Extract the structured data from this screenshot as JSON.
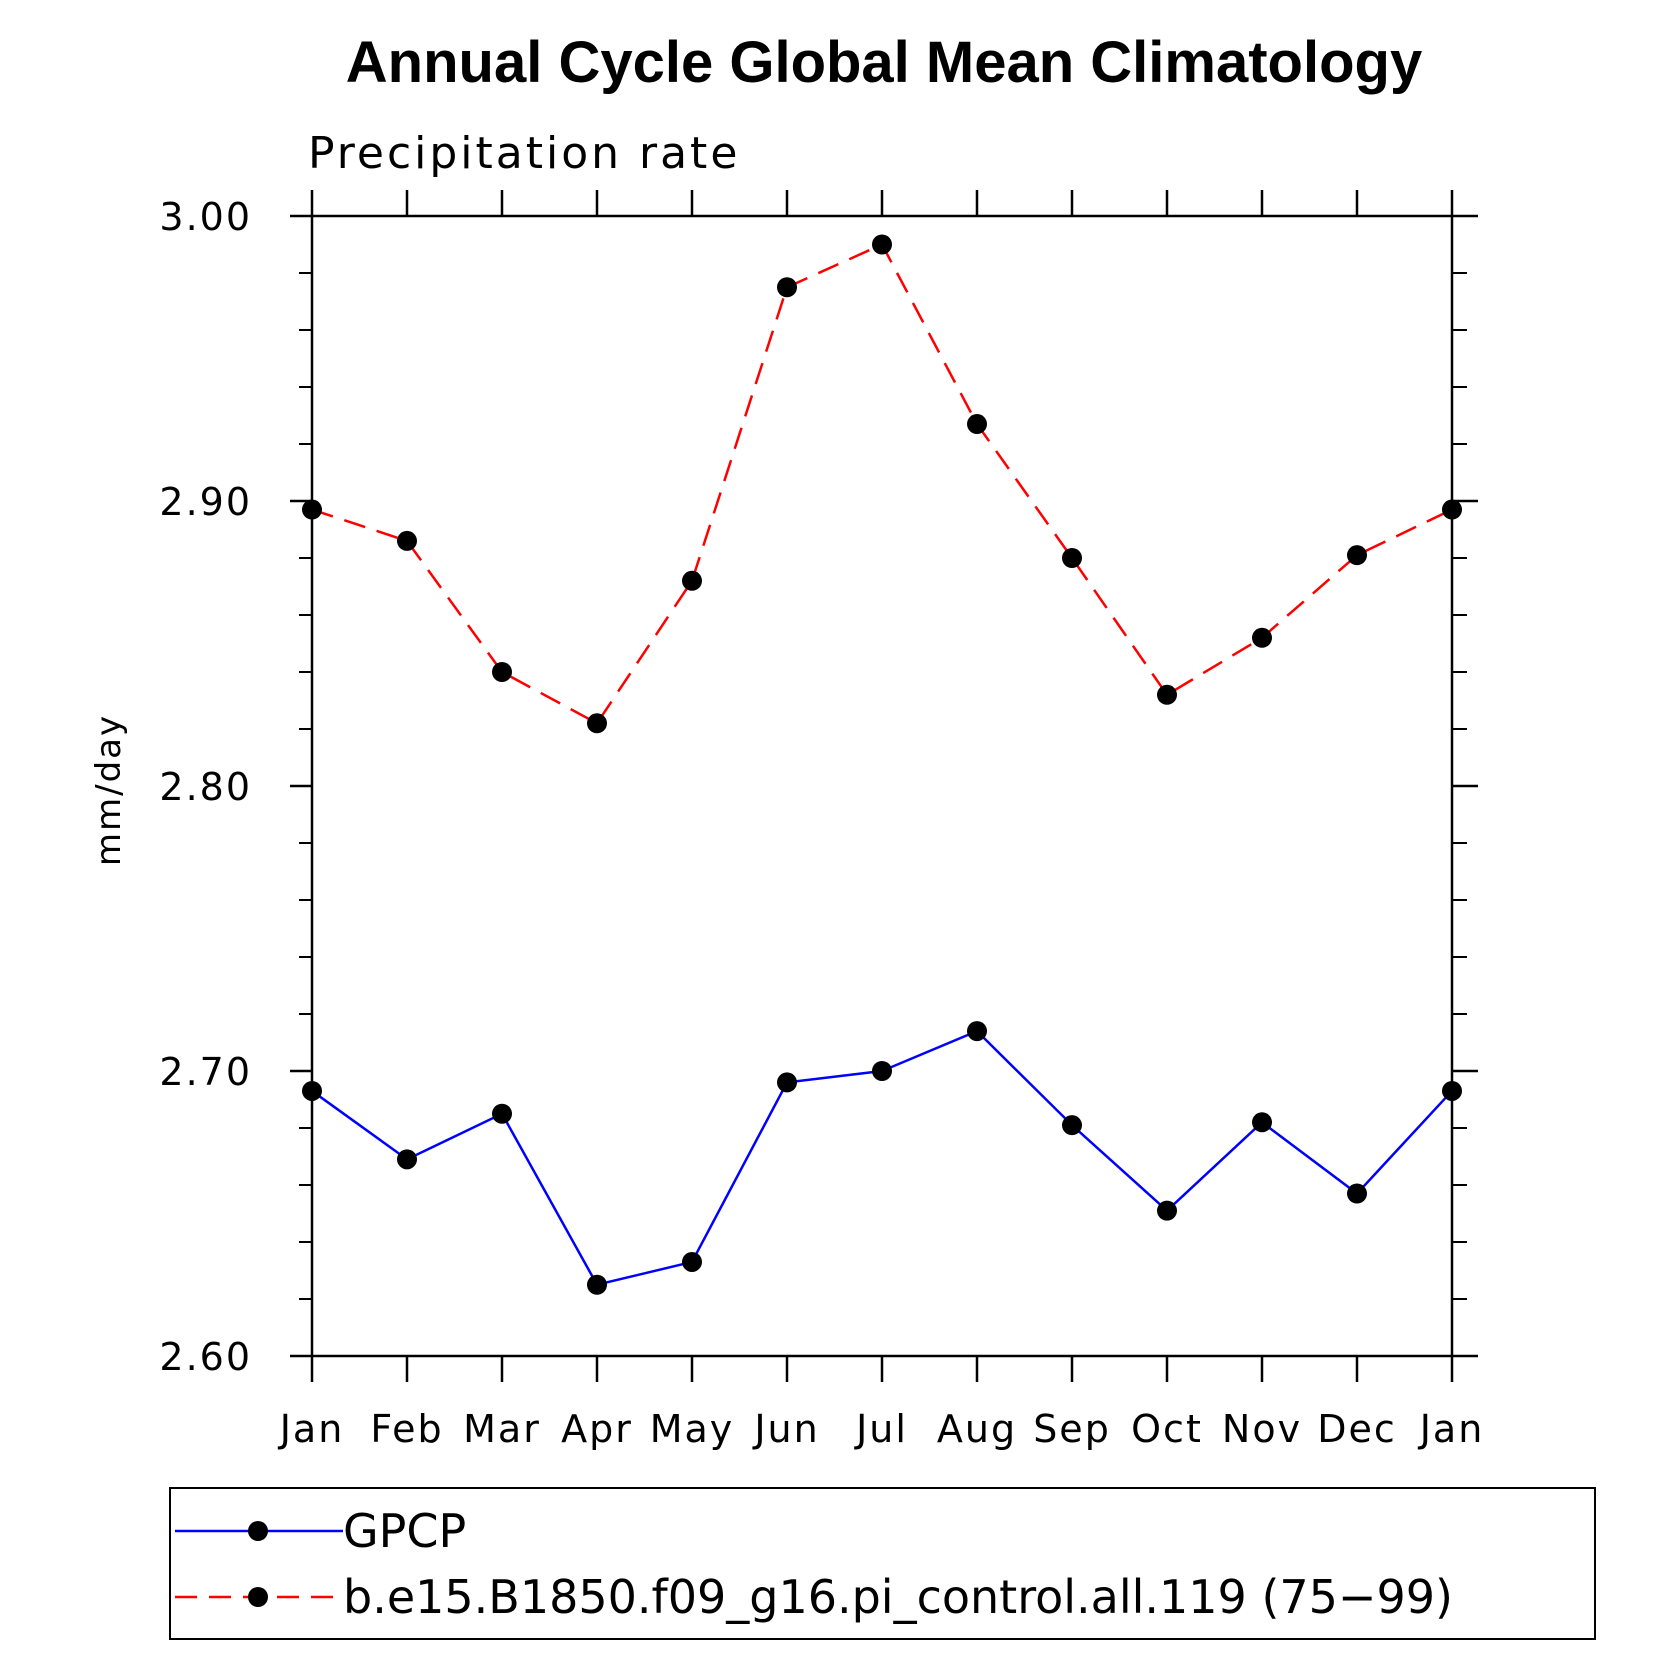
{
  "chart_data": {
    "type": "line",
    "title": "Annual Cycle Global Mean Climatology",
    "subtitle": "Precipitation rate",
    "xlabel": "",
    "ylabel": "mm/day",
    "categories": [
      "Jan",
      "Feb",
      "Mar",
      "Apr",
      "May",
      "Jun",
      "Jul",
      "Aug",
      "Sep",
      "Oct",
      "Nov",
      "Dec",
      "Jan"
    ],
    "ylim": [
      2.6,
      3.0
    ],
    "yticks": [
      "2.60",
      "2.70",
      "2.80",
      "2.90",
      "3.00"
    ],
    "legend_placement": "bottom",
    "series": [
      {
        "name": "GPCP",
        "color": "#0000ff",
        "style": "solid",
        "marker": "filled-circle",
        "values": [
          2.693,
          2.669,
          2.685,
          2.625,
          2.633,
          2.696,
          2.7,
          2.714,
          2.681,
          2.651,
          2.682,
          2.657,
          2.693
        ]
      },
      {
        "name": "b.e15.B1850.f09_g16.pi_control.all.119 (75−99)",
        "color": "#ff0000",
        "style": "dashed",
        "marker": "filled-circle",
        "values": [
          2.897,
          2.886,
          2.84,
          2.822,
          2.872,
          2.975,
          2.99,
          2.927,
          2.88,
          2.832,
          2.852,
          2.881,
          2.897
        ]
      }
    ]
  }
}
